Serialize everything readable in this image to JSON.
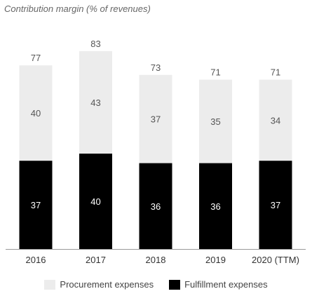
{
  "chart_data": {
    "type": "bar",
    "stacked": true,
    "title": "Contribution margin (% of revenues)",
    "xlabel": "",
    "ylabel": "",
    "ylim": [
      0,
      90
    ],
    "categories": [
      "2016",
      "2017",
      "2018",
      "2019",
      "2020 (TTM)"
    ],
    "totals": [
      77,
      83,
      73,
      71,
      71
    ],
    "series": [
      {
        "name": "Fulfillment expenses",
        "values": [
          37,
          40,
          36,
          36,
          37
        ],
        "color": "#000000",
        "label_color": "#ffffff"
      },
      {
        "name": "Procurement expenses",
        "values": [
          40,
          43,
          37,
          35,
          34
        ],
        "color": "#ececec",
        "label_color": "#555555"
      }
    ],
    "legend_position": "bottom",
    "grid": false
  }
}
